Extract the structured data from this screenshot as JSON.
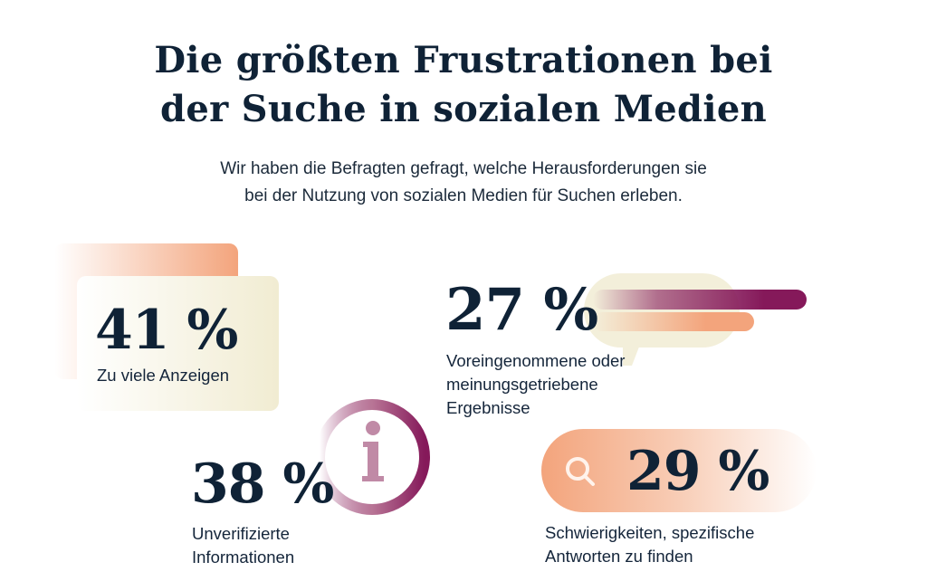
{
  "header": {
    "title_line1": "Die größten Frustrationen bei",
    "title_line2": "der Suche in sozialen Medien",
    "subtitle_line1": "Wir haben die Befragten gefragt, welche Herausforderungen sie",
    "subtitle_line2": "bei der Nutzung von sozialen Medien für Suchen erleben."
  },
  "stats": [
    {
      "value": "41 %",
      "label": "Zu viele Anzeigen",
      "icon": "stacked-cards"
    },
    {
      "value": "27 %",
      "label_lines": [
        "Voreingenommene oder",
        "meinungsgetriebene",
        "Ergebnisse"
      ],
      "icon": "speech-bubble-bars"
    },
    {
      "value": "38 %",
      "label_lines": [
        "Unverifizierte",
        "Informationen"
      ],
      "icon": "info-icon"
    },
    {
      "value": "29 %",
      "label_lines": [
        "Schwierigkeiten, spezifische",
        "Antworten zu finden"
      ],
      "icon": "search-icon"
    }
  ],
  "colors": {
    "text": "#0f2236",
    "orange": "#f3a47c",
    "cream": "#f1ecd2",
    "plum": "#85195a"
  }
}
